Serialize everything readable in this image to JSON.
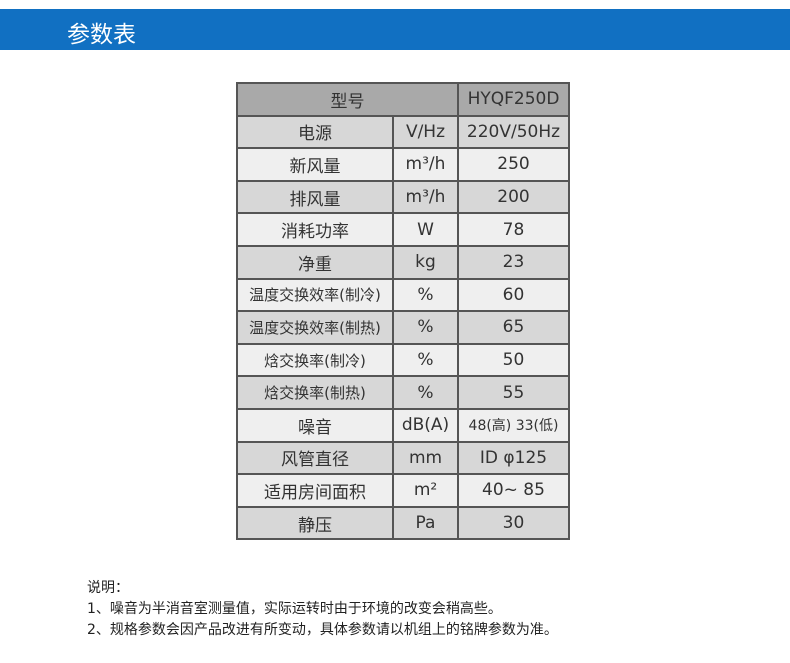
{
  "banner": {
    "title": "参数表",
    "color": "#1170c2"
  },
  "table": {
    "header": {
      "label": "型号",
      "value": "HYQF250D"
    },
    "rows": [
      {
        "label": "电源",
        "unit": "V/Hz",
        "value": "220V/50Hz"
      },
      {
        "label": "新风量",
        "unit": "m³/h",
        "value": "250"
      },
      {
        "label": "排风量",
        "unit": "m³/h",
        "value": "200"
      },
      {
        "label": "消耗功率",
        "unit": "W",
        "value": "78"
      },
      {
        "label": "净重",
        "unit": "kg",
        "value": "23"
      },
      {
        "label": "温度交换效率(制冷)",
        "unit": "%",
        "value": "60"
      },
      {
        "label": "温度交换效率(制热)",
        "unit": "%",
        "value": "65"
      },
      {
        "label": "焓交换率(制冷)",
        "unit": "%",
        "value": "50"
      },
      {
        "label": "焓交换率(制热)",
        "unit": "%",
        "value": "55"
      },
      {
        "label": "噪音",
        "unit": "dB(A)",
        "value": "48(高) 33(低)"
      },
      {
        "label": "风管直径",
        "unit": "mm",
        "value": "ID φ125"
      },
      {
        "label": "适用房间面积",
        "unit": "m²",
        "value": "40~ 85"
      },
      {
        "label": "静压",
        "unit": "Pa",
        "value": "30"
      }
    ]
  },
  "notes": {
    "title": "说明：",
    "items": [
      "1、噪音为半消音室测量值，实际运转时由于环境的改变会稍高些。",
      "2、规格参数会因产品改进有所变动，具体参数请以机组上的铭牌参数为准。"
    ]
  }
}
